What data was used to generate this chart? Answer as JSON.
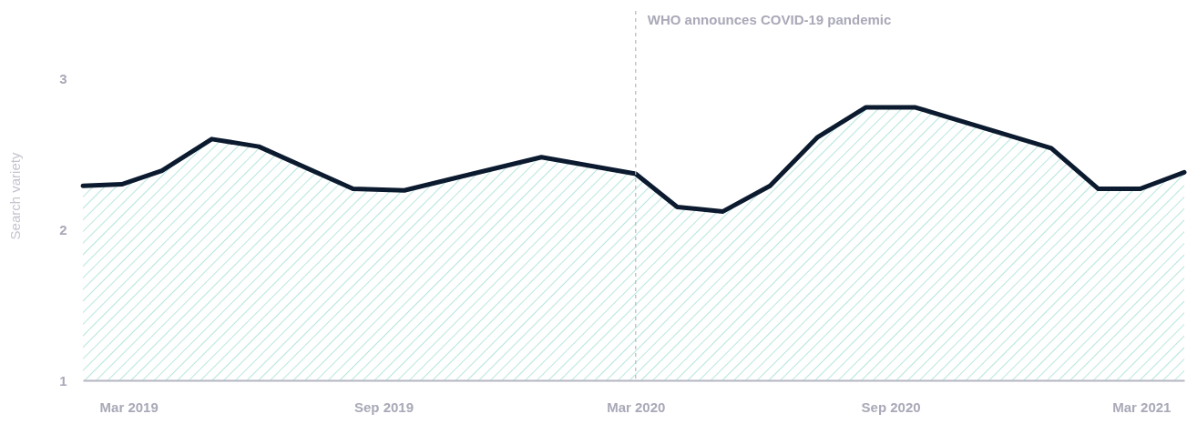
{
  "chart_data": {
    "type": "area",
    "ylabel": "Search variety",
    "x": [
      "2019-01-27",
      "2019-02-24",
      "2019-03-25",
      "2019-04-30",
      "2019-06-03",
      "2019-08-10",
      "2019-09-16",
      "2019-12-24",
      "2020-03-01",
      "2020-03-31",
      "2020-05-03",
      "2020-06-06",
      "2020-07-10",
      "2020-08-14",
      "2020-09-19",
      "2020-12-26",
      "2021-01-29",
      "2021-02-28",
      "2021-04-01"
    ],
    "series": [
      {
        "color": "#0b1a2e",
        "values": [
          2.29,
          2.3,
          2.39,
          2.6,
          2.55,
          2.27,
          2.26,
          2.48,
          2.37,
          2.15,
          2.12,
          2.29,
          2.61,
          2.81,
          2.81,
          2.54,
          2.27,
          2.27,
          2.38
        ]
      }
    ],
    "xlim": [
      "2019-01-27",
      "2021-04-01"
    ],
    "xticks": [
      {
        "value": "2019-03-01",
        "label": "Mar 2019"
      },
      {
        "value": "2019-09-01",
        "label": "Sep 2019"
      },
      {
        "value": "2020-03-01",
        "label": "Mar 2020"
      },
      {
        "value": "2020-09-01",
        "label": "Sep 2020"
      },
      {
        "value": "2021-03-01",
        "label": "Mar 2021"
      }
    ],
    "ylim": [
      1,
      3.45
    ],
    "yticks": [
      1,
      2,
      3
    ],
    "grid": false,
    "ref_lines": [
      {
        "axis": "x",
        "value": "2020-03-01",
        "label": "WHO announces COVID-19 pandemic",
        "color": "#b8b8c4",
        "line_style": "dashed"
      }
    ]
  }
}
